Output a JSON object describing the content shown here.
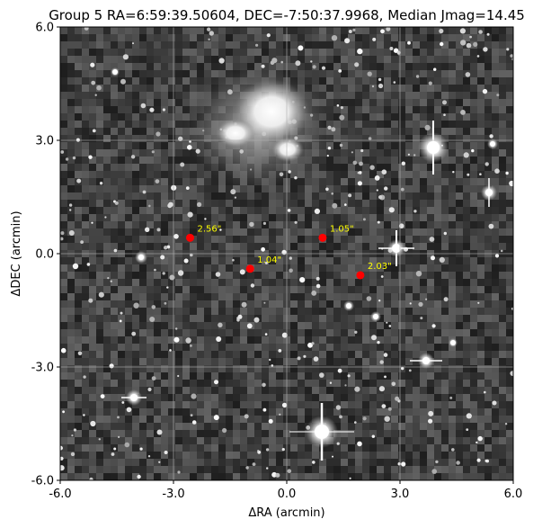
{
  "chart_data": {
    "type": "scatter",
    "title": "Group 5 RA=6:59:39.50604, DEC=-7:50:37.9968, Median Jmag=14.45",
    "xlabel": "ΔRA (arcmin)",
    "ylabel": "ΔDEC (arcmin)",
    "xlim": [
      -6.0,
      6.0
    ],
    "ylim": [
      -6.0,
      6.0
    ],
    "xticks": [
      -6.0,
      -3.0,
      0.0,
      3.0,
      6.0
    ],
    "yticks": [
      -6.0,
      -3.0,
      0.0,
      3.0,
      6.0
    ],
    "xtick_labels": [
      "-6.0",
      "-3.0",
      "0.0",
      "3.0",
      "6.0"
    ],
    "ytick_labels": [
      "-6.0",
      "-3.0",
      "0.0",
      "3.0",
      "6.0"
    ],
    "grid": true,
    "background": "grayscale sky image with stars and a bright diffuse nebula near top center",
    "marker_color": "#ff0000",
    "annotation_color": "#ffff00",
    "points": [
      {
        "x": -2.56,
        "y": 0.42,
        "label": "2.56\""
      },
      {
        "x": 0.95,
        "y": 0.42,
        "label": "1.05\""
      },
      {
        "x": -0.97,
        "y": -0.4,
        "label": "1.04\""
      },
      {
        "x": 1.95,
        "y": -0.57,
        "label": "2.03\""
      }
    ]
  }
}
